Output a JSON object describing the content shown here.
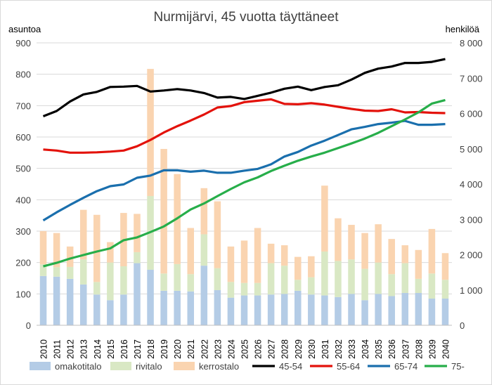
{
  "chart_data": {
    "type": "bar+line",
    "title": "Nurmijärvi,  45 vuotta täyttäneet",
    "ylabel_left": "asuntoa",
    "ylabel_right": "henkilöä",
    "ylim_left": [
      0,
      900
    ],
    "ylim_right": [
      0,
      8000
    ],
    "yticks_left": [
      "0",
      "100",
      "200",
      "300",
      "400",
      "500",
      "600",
      "700",
      "800",
      "900"
    ],
    "yticks_right": [
      "0",
      "1 000",
      "2 000",
      "3 000",
      "4 000",
      "5 000",
      "6 000",
      "7 000",
      "8 000"
    ],
    "grid": true,
    "legend_position": "bottom",
    "categories": [
      "2010",
      "2011",
      "2012",
      "2013",
      "2014",
      "2015",
      "2016",
      "2017",
      "2018",
      "2019",
      "2020",
      "2021",
      "2022",
      "2023",
      "2024",
      "2025",
      "2026",
      "2027",
      "2028",
      "2029",
      "2030",
      "2031",
      "2032",
      "2033",
      "2034",
      "2035",
      "2036",
      "2037",
      "2038",
      "2039",
      "2040"
    ],
    "bar_series": [
      {
        "name": "omakotitalo",
        "color": "#b4cce6",
        "values": [
          157,
          155,
          148,
          130,
          98,
          80,
          98,
          198,
          177,
          110,
          110,
          108,
          190,
          112,
          88,
          95,
          95,
          98,
          100,
          110,
          98,
          95,
          90,
          100,
          80,
          100,
          93,
          103,
          103,
          85,
          85
        ]
      },
      {
        "name": "rivitalo",
        "color": "#d9e8c4",
        "values": [
          37,
          30,
          38,
          80,
          40,
          120,
          90,
          35,
          235,
          55,
          85,
          55,
          100,
          70,
          50,
          40,
          40,
          100,
          90,
          35,
          55,
          140,
          115,
          110,
          100,
          100,
          70,
          95,
          45,
          80,
          60
        ]
      },
      {
        "name": "kerrostalo",
        "color": "#fad4b0",
        "values": [
          106,
          109,
          65,
          158,
          214,
          65,
          170,
          122,
          405,
          397,
          287,
          147,
          147,
          213,
          113,
          135,
          175,
          62,
          65,
          73,
          67,
          210,
          136,
          110,
          114,
          122,
          112,
          57,
          92,
          142,
          85
        ]
      }
    ],
    "line_series": [
      {
        "name": "45-54",
        "color": "#000000",
        "values": [
          5920,
          6070,
          6340,
          6540,
          6610,
          6750,
          6760,
          6780,
          6620,
          6650,
          6690,
          6650,
          6580,
          6450,
          6470,
          6410,
          6500,
          6590,
          6700,
          6760,
          6660,
          6750,
          6800,
          6960,
          7150,
          7270,
          7330,
          7430,
          7430,
          7460,
          7540
        ]
      },
      {
        "name": "55-64",
        "color": "#e3120b",
        "values": [
          4980,
          4950,
          4890,
          4890,
          4900,
          4920,
          4950,
          5070,
          5250,
          5460,
          5640,
          5800,
          5970,
          6170,
          6210,
          6320,
          6360,
          6400,
          6270,
          6260,
          6290,
          6250,
          6190,
          6130,
          6080,
          6070,
          6120,
          6030,
          6040,
          6020,
          6010
        ]
      },
      {
        "name": "65-74",
        "color": "#1a6fad",
        "values": [
          2970,
          3200,
          3410,
          3610,
          3800,
          3940,
          3990,
          4180,
          4240,
          4390,
          4390,
          4350,
          4380,
          4320,
          4320,
          4380,
          4430,
          4560,
          4780,
          4910,
          5090,
          5230,
          5390,
          5550,
          5620,
          5700,
          5740,
          5790,
          5680,
          5680,
          5700
        ]
      },
      {
        "name": "75-",
        "color": "#27ae4a",
        "values": [
          1670,
          1770,
          1890,
          1990,
          2090,
          2180,
          2410,
          2490,
          2640,
          2800,
          3030,
          3280,
          3450,
          3660,
          3860,
          4050,
          4190,
          4370,
          4520,
          4660,
          4780,
          4890,
          5020,
          5150,
          5290,
          5450,
          5640,
          5830,
          6030,
          6280,
          6380
        ]
      }
    ]
  }
}
